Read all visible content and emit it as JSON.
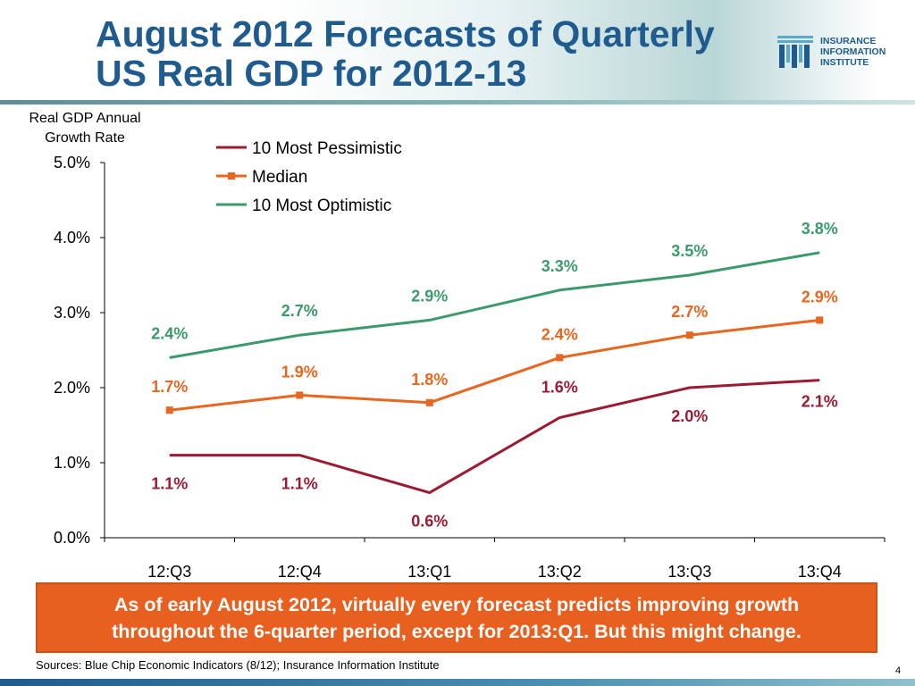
{
  "header": {
    "title_lines": [
      "August 2012 Forecasts of Quarterly",
      "US Real GDP for 2012-13"
    ],
    "logo_lines": [
      "INSURANCE",
      "INFORMATION",
      "INSTITUTE"
    ],
    "logo_mark": "iii-logo-icon"
  },
  "chart_data": {
    "type": "line",
    "title": "",
    "ylabel_lines": [
      "Real GDP Annual",
      "Growth Rate"
    ],
    "xlabel": "",
    "categories": [
      "12:Q3",
      "12:Q4",
      "13:Q1",
      "13:Q2",
      "13:Q3",
      "13:Q4"
    ],
    "y_ticks": [
      "0.0%",
      "1.0%",
      "2.0%",
      "3.0%",
      "4.0%",
      "5.0%"
    ],
    "ylim": [
      0,
      5
    ],
    "grid": false,
    "legend_position": "top-left",
    "series": [
      {
        "name": "10 Most Pessimistic",
        "color": "#9b1b30",
        "marker": "none",
        "values": [
          1.1,
          1.1,
          0.6,
          1.6,
          2.0,
          2.1
        ],
        "labels": [
          "1.1%",
          "1.1%",
          "0.6%",
          "1.6%",
          "2.0%",
          "2.1%"
        ]
      },
      {
        "name": "Median",
        "color": "#e8661f",
        "marker": "square",
        "values": [
          1.7,
          1.9,
          1.8,
          2.4,
          2.7,
          2.9
        ],
        "labels": [
          "1.7%",
          "1.9%",
          "1.8%",
          "2.4%",
          "2.7%",
          "2.9%"
        ]
      },
      {
        "name": "10 Most Optimistic",
        "color": "#3a9a6a",
        "marker": "none",
        "values": [
          2.4,
          2.7,
          2.9,
          3.3,
          3.5,
          3.8
        ],
        "labels": [
          "2.4%",
          "2.7%",
          "2.9%",
          "3.3%",
          "3.5%",
          "3.8%"
        ]
      }
    ]
  },
  "callout": {
    "lines": [
      "As of early August 2012, virtually every forecast predicts improving growth",
      "throughout the 6-quarter period, except for 2013:Q1. But this might change."
    ],
    "color": "#e8601f"
  },
  "footer": {
    "sources": "Sources: Blue Chip Economic Indicators (8/12); Insurance Information Institute",
    "page_number": "4"
  }
}
